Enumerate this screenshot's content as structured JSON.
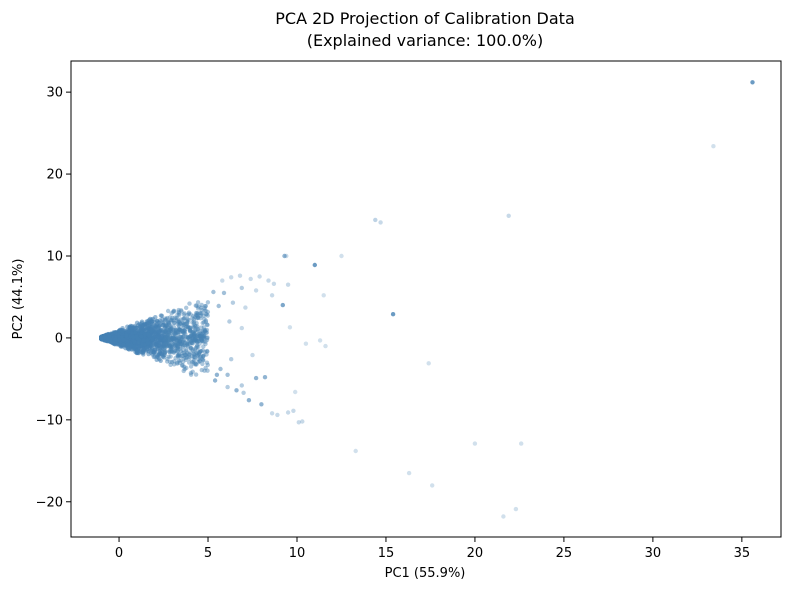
{
  "chart_data": {
    "type": "scatter",
    "title": "PCA 2D Projection of Calibration Data",
    "subtitle": "(Explained variance: 100.0%)",
    "xlabel": "PC1 (55.9%)",
    "ylabel": "PC2 (44.1%)",
    "xlim": [
      -2.7,
      37.2
    ],
    "ylim": [
      -24.3,
      33.8
    ],
    "xticks": [
      0,
      5,
      10,
      15,
      20,
      25,
      30,
      35
    ],
    "yticks": [
      -20,
      -10,
      0,
      10,
      20,
      30
    ],
    "point_color": "#4682b4",
    "grid": false,
    "cluster": {
      "description_values": "dense cone of points from x≈-1 to x≈5, spreading with |y| up to about 0.9·x",
      "x_range": [
        -1,
        5
      ],
      "y_slope_max": 0.9
    },
    "points": [
      {
        "x": 35.6,
        "y": 31.2,
        "alpha": 0.8
      },
      {
        "x": 33.4,
        "y": 23.4,
        "alpha": 0.25
      },
      {
        "x": 14.4,
        "y": 14.4,
        "alpha": 0.35
      },
      {
        "x": 14.7,
        "y": 14.1,
        "alpha": 0.3
      },
      {
        "x": 21.9,
        "y": 14.9,
        "alpha": 0.3
      },
      {
        "x": 9.3,
        "y": 10.0,
        "alpha": 0.6
      },
      {
        "x": 9.4,
        "y": 10.0,
        "alpha": 0.3
      },
      {
        "x": 12.5,
        "y": 10.0,
        "alpha": 0.25
      },
      {
        "x": 11.0,
        "y": 8.9,
        "alpha": 0.8
      },
      {
        "x": 11.5,
        "y": 5.2,
        "alpha": 0.25
      },
      {
        "x": 15.4,
        "y": 2.9,
        "alpha": 0.8
      },
      {
        "x": 9.2,
        "y": 4.0,
        "alpha": 0.7
      },
      {
        "x": 9.6,
        "y": 1.3,
        "alpha": 0.25
      },
      {
        "x": 10.5,
        "y": -0.7,
        "alpha": 0.25
      },
      {
        "x": 11.3,
        "y": -0.3,
        "alpha": 0.25
      },
      {
        "x": 11.6,
        "y": -1.0,
        "alpha": 0.25
      },
      {
        "x": 17.4,
        "y": -3.1,
        "alpha": 0.25
      },
      {
        "x": 9.9,
        "y": -6.6,
        "alpha": 0.25
      },
      {
        "x": 7.7,
        "y": -4.9,
        "alpha": 0.6
      },
      {
        "x": 8.2,
        "y": -4.8,
        "alpha": 0.6
      },
      {
        "x": 6.6,
        "y": -6.4,
        "alpha": 0.6
      },
      {
        "x": 7.3,
        "y": -7.6,
        "alpha": 0.6
      },
      {
        "x": 8.0,
        "y": -8.1,
        "alpha": 0.6
      },
      {
        "x": 8.6,
        "y": -9.2,
        "alpha": 0.3
      },
      {
        "x": 8.9,
        "y": -9.4,
        "alpha": 0.3
      },
      {
        "x": 9.5,
        "y": -9.1,
        "alpha": 0.3
      },
      {
        "x": 9.8,
        "y": -8.9,
        "alpha": 0.3
      },
      {
        "x": 10.1,
        "y": -10.3,
        "alpha": 0.3
      },
      {
        "x": 10.3,
        "y": -10.2,
        "alpha": 0.3
      },
      {
        "x": 13.3,
        "y": -13.8,
        "alpha": 0.25
      },
      {
        "x": 20.0,
        "y": -12.9,
        "alpha": 0.25
      },
      {
        "x": 22.6,
        "y": -12.9,
        "alpha": 0.25
      },
      {
        "x": 16.3,
        "y": -16.5,
        "alpha": 0.25
      },
      {
        "x": 17.6,
        "y": -18.0,
        "alpha": 0.25
      },
      {
        "x": 21.6,
        "y": -21.8,
        "alpha": 0.25
      },
      {
        "x": 22.3,
        "y": -20.9,
        "alpha": 0.25
      },
      {
        "x": 5.8,
        "y": 7.0,
        "alpha": 0.3
      },
      {
        "x": 6.3,
        "y": 7.4,
        "alpha": 0.3
      },
      {
        "x": 6.8,
        "y": 7.6,
        "alpha": 0.3
      },
      {
        "x": 7.4,
        "y": 7.2,
        "alpha": 0.3
      },
      {
        "x": 7.9,
        "y": 7.5,
        "alpha": 0.3
      },
      {
        "x": 8.4,
        "y": 7.0,
        "alpha": 0.3
      },
      {
        "x": 8.7,
        "y": 6.6,
        "alpha": 0.3
      },
      {
        "x": 9.5,
        "y": 6.5,
        "alpha": 0.3
      },
      {
        "x": 8.6,
        "y": 5.2,
        "alpha": 0.3
      },
      {
        "x": 7.7,
        "y": 5.8,
        "alpha": 0.3
      },
      {
        "x": 6.9,
        "y": 6.1,
        "alpha": 0.4
      },
      {
        "x": 5.9,
        "y": 5.5,
        "alpha": 0.5
      },
      {
        "x": 5.3,
        "y": 5.6,
        "alpha": 0.5
      },
      {
        "x": 6.4,
        "y": 4.3,
        "alpha": 0.4
      },
      {
        "x": 7.1,
        "y": 3.7,
        "alpha": 0.3
      },
      {
        "x": 6.9,
        "y": 1.2,
        "alpha": 0.3
      },
      {
        "x": 6.2,
        "y": 2.0,
        "alpha": 0.4
      },
      {
        "x": 5.6,
        "y": 3.9,
        "alpha": 0.5
      },
      {
        "x": 7.5,
        "y": -2.1,
        "alpha": 0.3
      },
      {
        "x": 6.3,
        "y": -2.6,
        "alpha": 0.4
      },
      {
        "x": 5.7,
        "y": -3.8,
        "alpha": 0.5
      },
      {
        "x": 6.1,
        "y": -4.5,
        "alpha": 0.5
      },
      {
        "x": 5.4,
        "y": -5.2,
        "alpha": 0.6
      },
      {
        "x": 6.9,
        "y": -5.8,
        "alpha": 0.4
      },
      {
        "x": 7.0,
        "y": -6.7,
        "alpha": 0.4
      },
      {
        "x": 6.1,
        "y": -6.0,
        "alpha": 0.4
      },
      {
        "x": 5.5,
        "y": -4.5,
        "alpha": 0.6
      }
    ]
  }
}
